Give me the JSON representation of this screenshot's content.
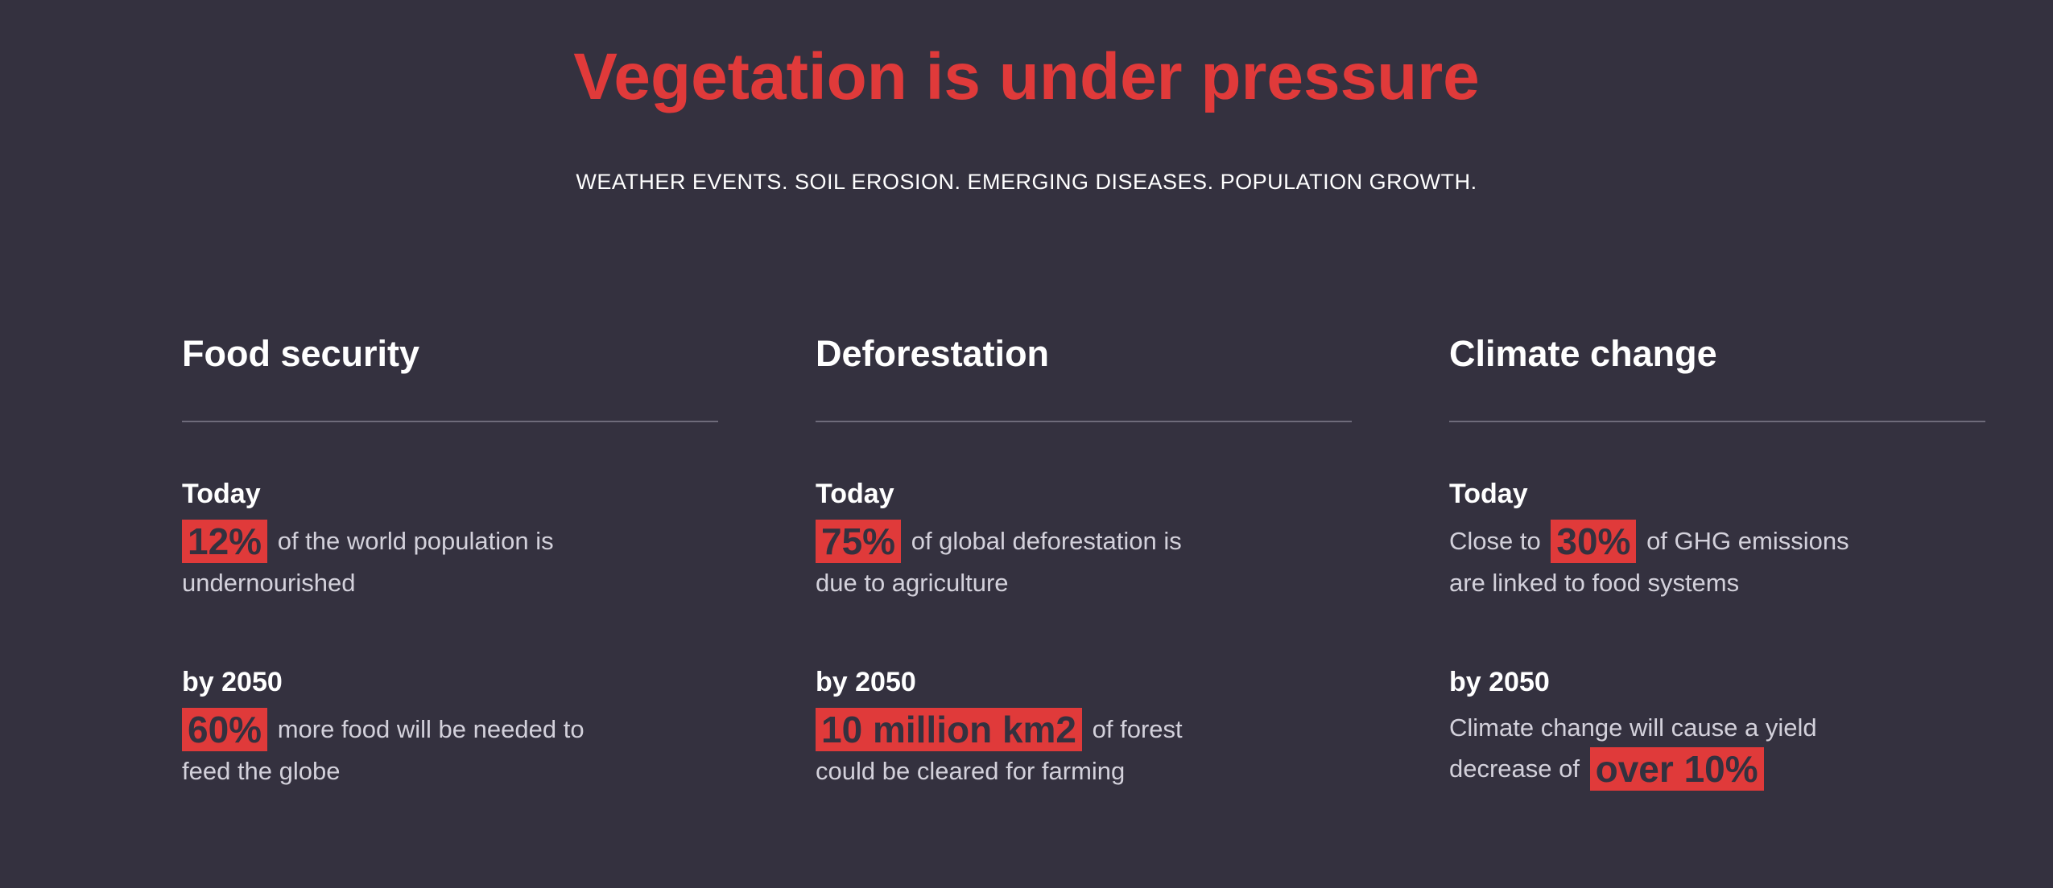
{
  "header": {
    "title": "Vegetation is under pressure",
    "subtitle": "WEATHER EVENTS. SOIL EROSION. EMERGING DISEASES. POPULATION GROWTH."
  },
  "columns": [
    {
      "heading": "Food security",
      "today": {
        "label": "Today",
        "prefix": "",
        "highlight": "12%",
        "suffix": "of the world population is",
        "line2": "undernourished"
      },
      "future": {
        "label": "by 2050",
        "prefix": "",
        "highlight": "60%",
        "suffix": "more food will be needed to",
        "line2": "feed the globe"
      }
    },
    {
      "heading": "Deforestation",
      "today": {
        "label": "Today",
        "prefix": "",
        "highlight": "75%",
        "suffix": "of global deforestation is",
        "line2": "due to agriculture"
      },
      "future": {
        "label": "by 2050",
        "prefix": "",
        "highlight": "10 million km2",
        "suffix": "of forest",
        "line2": "could be cleared for farming"
      }
    },
    {
      "heading": "Climate change",
      "today": {
        "label": "Today",
        "prefix": "Close to",
        "highlight": "30%",
        "suffix": "of GHG emissions",
        "line2": "are linked to food systems"
      },
      "future": {
        "label": "by 2050",
        "line1": "Climate change will cause a yield",
        "prefix": "decrease of",
        "highlight": "over 10%"
      }
    }
  ],
  "colors": {
    "background": "#34313f",
    "accent": "#e03a3a",
    "text": "#ffffff",
    "muted_text": "#d3d1db",
    "divider": "#6e6b7a"
  }
}
